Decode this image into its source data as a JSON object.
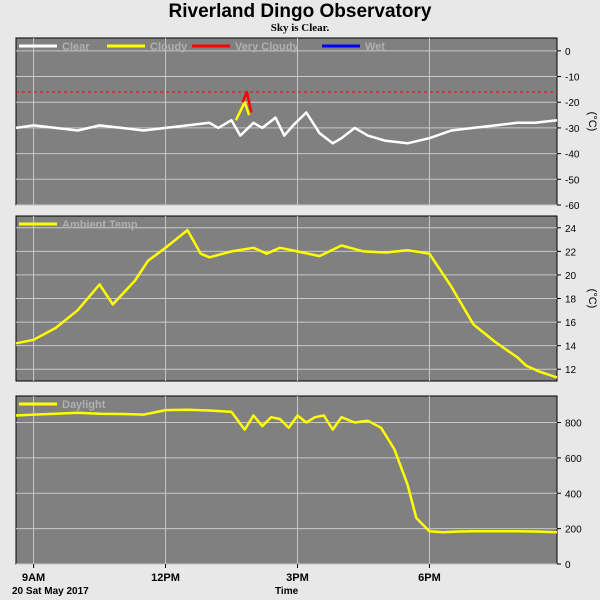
{
  "header": {
    "title": "Riverland Dingo Observatory",
    "subtitle": "Sky is Clear."
  },
  "footer": {
    "date": "20 Sat May 2017",
    "xlabel": "Time"
  },
  "colors": {
    "background": "#e8e8e8",
    "plot_bg": "#808080",
    "grid": "#c8c8c8",
    "clear": "#ffffff",
    "cloudy": "#ffff00",
    "very_cloudy": "#ff0000",
    "wet": "#0000ff",
    "threshold": "#ff0000"
  },
  "chart_data": [
    {
      "type": "line",
      "name": "sky",
      "unit": "(°C)",
      "ylim": [
        -60,
        5
      ],
      "yticks": [
        0,
        -10,
        -20,
        -30,
        -40,
        -50,
        -60
      ],
      "xlim": [
        8.6,
        20.9
      ],
      "xticks": [
        {
          "label": "9AM",
          "value": 9
        },
        {
          "label": "12PM",
          "value": 12
        },
        {
          "label": "3PM",
          "value": 15
        },
        {
          "label": "6PM",
          "value": 18
        }
      ],
      "grid": true,
      "threshold": -16,
      "legend": [
        "Clear",
        "Cloudy",
        "Very Cloudy",
        "Wet"
      ],
      "series": [
        {
          "name": "Clear",
          "x": [
            8.6,
            9.0,
            9.5,
            10.0,
            10.5,
            11.0,
            11.5,
            12.0,
            12.5,
            13.0,
            13.2,
            13.5,
            13.7,
            14.0,
            14.2,
            14.5,
            14.7,
            14.9,
            15.2,
            15.5,
            15.8,
            16.0,
            16.3,
            16.6,
            17.0,
            17.5,
            18.0,
            18.5,
            19.0,
            19.5,
            20.0,
            20.4,
            20.9
          ],
          "y": [
            -30,
            -29,
            -30,
            -31,
            -29,
            -30,
            -31,
            -30,
            -29,
            -28,
            -30,
            -27,
            -33,
            -28,
            -30,
            -26,
            -33,
            -29,
            -24,
            -32,
            -36,
            -34,
            -30,
            -33,
            -35,
            -36,
            -34,
            -31,
            -30,
            -29,
            -28,
            -28,
            -27
          ]
        },
        {
          "name": "Cloudy",
          "x": [
            13.6,
            13.8,
            13.9
          ],
          "y": [
            -27,
            -20,
            -25
          ]
        },
        {
          "name": "Very Cloudy",
          "x": [
            13.75,
            13.85,
            13.95
          ],
          "y": [
            -20,
            -16,
            -24
          ]
        }
      ]
    },
    {
      "type": "line",
      "name": "temp",
      "unit": "(°C)",
      "ylim": [
        11,
        25
      ],
      "yticks": [
        24,
        22,
        20,
        18,
        16,
        14,
        12
      ],
      "xlim": [
        8.6,
        20.9
      ],
      "grid": true,
      "legend": [
        "Ambient Temp"
      ],
      "series": [
        {
          "name": "Ambient Temp",
          "x": [
            8.6,
            9.0,
            9.5,
            10.0,
            10.5,
            10.8,
            11.0,
            11.3,
            11.6,
            12.0,
            12.5,
            12.8,
            13.0,
            13.5,
            14.0,
            14.3,
            14.6,
            15.0,
            15.5,
            16.0,
            16.5,
            17.0,
            17.5,
            18.0,
            18.5,
            19.0,
            19.5,
            20.0,
            20.2,
            20.5,
            20.9
          ],
          "y": [
            14.2,
            14.5,
            15.5,
            17.0,
            19.2,
            17.5,
            18.3,
            19.5,
            21.2,
            22.3,
            23.8,
            21.8,
            21.5,
            22.0,
            22.3,
            21.8,
            22.3,
            22.0,
            21.6,
            22.5,
            22.0,
            21.9,
            22.1,
            21.8,
            19.0,
            15.8,
            14.3,
            13.0,
            12.3,
            11.8,
            11.3
          ]
        }
      ]
    },
    {
      "type": "line",
      "name": "daylight",
      "unit": "",
      "ylim": [
        0,
        950
      ],
      "yticks": [
        800,
        600,
        400,
        200,
        0
      ],
      "xlim": [
        8.6,
        20.9
      ],
      "grid": true,
      "legend": [
        "Daylight"
      ],
      "series": [
        {
          "name": "Daylight",
          "x": [
            8.6,
            9.0,
            9.5,
            10.0,
            10.5,
            11.0,
            11.5,
            12.0,
            12.5,
            13.0,
            13.5,
            13.8,
            14.0,
            14.2,
            14.4,
            14.6,
            14.8,
            15.0,
            15.2,
            15.4,
            15.6,
            15.8,
            16.0,
            16.3,
            16.6,
            16.9,
            17.2,
            17.5,
            17.7,
            18.0,
            18.3,
            18.6,
            19.0,
            19.5,
            20.0,
            20.5,
            20.9
          ],
          "y": [
            840,
            845,
            850,
            855,
            850,
            848,
            845,
            870,
            872,
            868,
            860,
            760,
            840,
            780,
            830,
            820,
            770,
            840,
            800,
            830,
            840,
            760,
            830,
            800,
            810,
            770,
            650,
            450,
            260,
            185,
            180,
            183,
            185,
            185,
            185,
            183,
            180
          ]
        }
      ]
    }
  ]
}
